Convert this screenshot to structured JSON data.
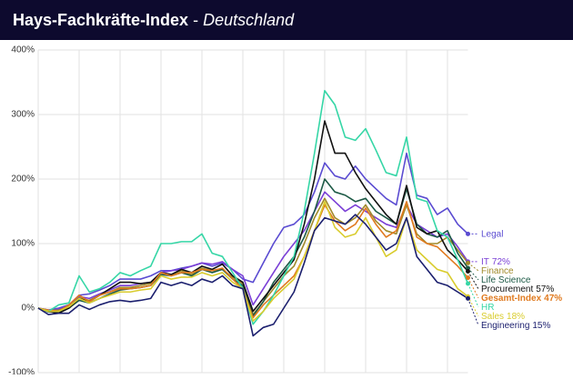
{
  "chart_data": {
    "type": "line",
    "title": "Hays-Fachkräfte-Index",
    "title_separator": "-",
    "subtitle": "Deutschland",
    "categories": [
      null,
      null,
      null,
      null,
      null,
      null,
      null,
      null,
      null,
      null,
      null,
      null,
      null,
      null,
      null,
      null,
      null,
      null,
      null,
      null,
      null,
      null,
      null,
      null,
      null,
      null,
      null,
      null,
      null,
      null,
      null,
      null,
      null,
      null,
      null,
      null,
      null,
      null,
      null,
      null,
      null,
      null,
      null
    ],
    "ylim": [
      -100,
      400
    ],
    "yticks": [
      {
        "value": -100,
        "label": "-100%"
      },
      {
        "value": 0,
        "label": "0%"
      },
      {
        "value": 100,
        "label": "100%"
      },
      {
        "value": 200,
        "label": "200%"
      },
      {
        "value": 300,
        "label": "300%"
      },
      {
        "value": 400,
        "label": "400%"
      }
    ],
    "grid": true,
    "series": [
      {
        "name": "Legal",
        "color": "#5a4bd1",
        "values": [
          0,
          -3,
          0,
          5,
          20,
          22,
          28,
          35,
          45,
          45,
          45,
          50,
          58,
          58,
          62,
          65,
          70,
          65,
          70,
          60,
          45,
          40,
          70,
          100,
          125,
          130,
          145,
          180,
          225,
          205,
          200,
          220,
          200,
          185,
          170,
          160,
          240,
          175,
          170,
          145,
          155,
          130,
          115
        ]
      },
      {
        "name": "IT",
        "end_label": "72%",
        "color": "#7a3fd6",
        "values": [
          0,
          -3,
          -2,
          3,
          18,
          15,
          22,
          28,
          35,
          35,
          38,
          40,
          55,
          58,
          60,
          65,
          70,
          68,
          72,
          60,
          50,
          5,
          30,
          55,
          80,
          100,
          120,
          150,
          180,
          165,
          150,
          160,
          150,
          140,
          130,
          125,
          160,
          130,
          120,
          110,
          115,
          95,
          72
        ]
      },
      {
        "name": "Finance",
        "color": "#a08a2a",
        "values": [
          0,
          -4,
          -3,
          2,
          16,
          12,
          20,
          25,
          32,
          32,
          35,
          38,
          55,
          52,
          58,
          52,
          62,
          58,
          60,
          48,
          38,
          -10,
          10,
          30,
          50,
          65,
          100,
          140,
          170,
          140,
          130,
          140,
          160,
          135,
          120,
          115,
          160,
          115,
          100,
          100,
          110,
          90,
          70
        ]
      },
      {
        "name": "Life Science",
        "color": "#1d5a46",
        "values": [
          0,
          -6,
          -6,
          0,
          12,
          8,
          15,
          22,
          28,
          30,
          32,
          35,
          52,
          50,
          55,
          50,
          60,
          55,
          60,
          45,
          35,
          -12,
          10,
          40,
          60,
          80,
          110,
          150,
          200,
          180,
          175,
          165,
          170,
          150,
          140,
          130,
          185,
          130,
          115,
          110,
          120,
          85,
          62
        ]
      },
      {
        "name": "Procurement",
        "end_label": "57%",
        "color": "#111111",
        "values": [
          0,
          -5,
          -8,
          0,
          15,
          10,
          20,
          30,
          40,
          40,
          38,
          40,
          55,
          52,
          60,
          55,
          65,
          60,
          68,
          50,
          40,
          -5,
          15,
          35,
          55,
          75,
          130,
          200,
          290,
          240,
          240,
          210,
          185,
          165,
          145,
          130,
          190,
          125,
          115,
          120,
          90,
          75,
          57
        ]
      },
      {
        "name": "Gesamt-Index",
        "end_label": "47%",
        "color": "#e07a1f",
        "bold": true,
        "values": [
          0,
          -3,
          -5,
          5,
          20,
          10,
          20,
          25,
          30,
          30,
          32,
          35,
          55,
          50,
          55,
          55,
          60,
          58,
          62,
          45,
          30,
          -15,
          5,
          20,
          35,
          50,
          80,
          120,
          160,
          135,
          120,
          130,
          155,
          130,
          110,
          120,
          165,
          110,
          100,
          95,
          80,
          65,
          47
        ]
      },
      {
        "name": "HR",
        "color": "#35d6a6",
        "values": [
          0,
          -5,
          5,
          8,
          50,
          25,
          30,
          40,
          55,
          50,
          58,
          65,
          100,
          100,
          103,
          103,
          115,
          85,
          80,
          55,
          30,
          -25,
          -5,
          20,
          50,
          80,
          150,
          240,
          337,
          315,
          265,
          260,
          278,
          245,
          210,
          205,
          265,
          170,
          165,
          120,
          110,
          75,
          38
        ]
      },
      {
        "name": "Sales",
        "end_label": "18%",
        "color": "#d9cc2e",
        "values": [
          0,
          -5,
          -5,
          2,
          15,
          8,
          15,
          20,
          25,
          25,
          28,
          30,
          50,
          45,
          48,
          48,
          55,
          50,
          55,
          40,
          30,
          -20,
          -5,
          15,
          30,
          45,
          80,
          120,
          165,
          125,
          110,
          115,
          140,
          110,
          80,
          90,
          140,
          90,
          75,
          60,
          55,
          30,
          18
        ]
      },
      {
        "name": "Engineering",
        "end_label": "15%",
        "color": "#1b1f6e",
        "values": [
          0,
          -10,
          -8,
          -8,
          5,
          -2,
          5,
          10,
          12,
          10,
          12,
          15,
          40,
          35,
          40,
          35,
          45,
          40,
          50,
          35,
          30,
          -43,
          -30,
          -25,
          0,
          25,
          70,
          120,
          140,
          135,
          130,
          145,
          130,
          110,
          90,
          100,
          140,
          80,
          60,
          40,
          35,
          25,
          15
        ]
      }
    ]
  }
}
